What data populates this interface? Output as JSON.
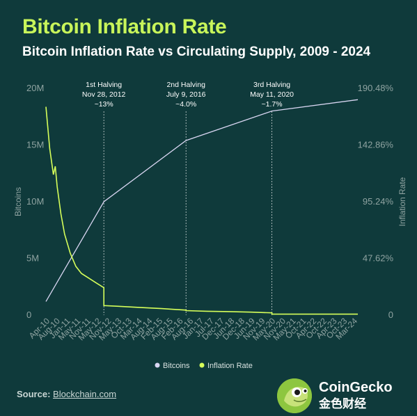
{
  "header": {
    "title": "Bitcoin Inflation Rate",
    "subtitle": "Bitcoin Inflation Rate vs Circulating Supply, 2009 - 2024"
  },
  "footer": {
    "source_label": "Source:",
    "source_link": "Blockchain.com",
    "brand_name": "CoinGecko",
    "brand_sub": "金色财经"
  },
  "colors": {
    "background": "#0f3a3b",
    "bitcoins": "#d9d6f2",
    "inflation": "#d6ff5a",
    "axis_text": "#8fa3a1",
    "annotation": "#ffffff"
  },
  "chart_data": {
    "type": "line",
    "title": "Bitcoin Inflation Rate vs Circulating Supply, 2009 - 2024",
    "ylabel_left": "Bitcoins",
    "ylabel_right": "Inflation Rate",
    "ylim_left": [
      0,
      20000000
    ],
    "ylim_right": [
      0,
      190.48
    ],
    "left_ticks": [
      "0",
      "5M",
      "10M",
      "15M",
      "20M"
    ],
    "right_ticks": [
      "0",
      "47.62%",
      "95.24%",
      "142.86%",
      "190.48%"
    ],
    "x_ticks": [
      "Apr-10",
      "Aug-10",
      "Jan-11",
      "May-11",
      "Nov-11",
      "May-12",
      "Nov-12",
      "May-13",
      "Oct-13",
      "Mar-14",
      "Aug-14",
      "Feb-15",
      "Aug-15",
      "Feb-16",
      "Aug-16",
      "Jan-17",
      "Jul-17",
      "Dec-17",
      "Jun-18",
      "Dec-18",
      "Jun-19",
      "Nov-19",
      "May-20",
      "Nov-20",
      "May-21",
      "Oct-21",
      "Apr-22",
      "Oct-22",
      "Apr-23",
      "Oct-23",
      "Mar-24"
    ],
    "x_range": [
      "2010-04",
      "2024-03"
    ],
    "legend_position": "bottom",
    "grid": false,
    "series": [
      {
        "name": "Bitcoins",
        "axis": "left",
        "x": [
          "2010-04",
          "2012-11",
          "2016-07",
          "2020-05",
          "2024-03"
        ],
        "values": [
          1200000,
          10000000,
          15400000,
          18000000,
          19000000
        ]
      },
      {
        "name": "Inflation Rate",
        "axis": "right",
        "x": [
          "2010-04",
          "2010-06",
          "2010-08",
          "2010-09",
          "2010-10",
          "2010-12",
          "2011-02",
          "2011-05",
          "2011-08",
          "2011-11",
          "2012-03",
          "2012-07",
          "2012-11",
          "2012-11",
          "2013-06",
          "2014-06",
          "2015-06",
          "2016-07",
          "2016-07",
          "2017-06",
          "2018-06",
          "2019-06",
          "2020-05",
          "2020-05",
          "2022-01",
          "2024-03"
        ],
        "values": [
          175,
          140,
          118,
          125,
          108,
          85,
          68,
          52,
          41,
          35,
          31,
          27,
          23,
          8,
          7.5,
          6.5,
          5.5,
          4.2,
          3.8,
          3.3,
          3.0,
          2.5,
          1.9,
          0.8,
          0.8,
          0.8
        ]
      }
    ],
    "annotations": [
      {
        "lines": [
          "1st Halving",
          "Nov 28, 2012",
          "~13%"
        ],
        "x": "2012-11"
      },
      {
        "lines": [
          "2nd Halving",
          "July 9, 2016",
          "~4.0%"
        ],
        "x": "2016-07"
      },
      {
        "lines": [
          "3rd Halving",
          "May 11, 2020",
          "~1.7%"
        ],
        "x": "2020-05"
      }
    ]
  }
}
